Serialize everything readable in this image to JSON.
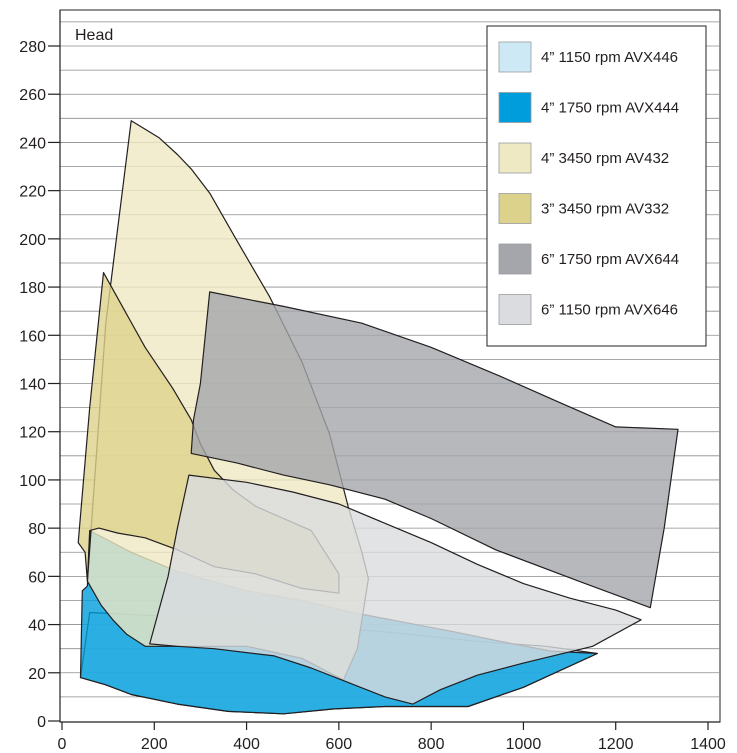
{
  "chart_data": {
    "type": "area",
    "ylabel": "Head",
    "xlabel": "",
    "xlim": [
      0,
      1400
    ],
    "ylim": [
      0,
      290
    ],
    "x_ticks": [
      0,
      200,
      400,
      600,
      800,
      1000,
      1200,
      1400
    ],
    "y_ticks": [
      0,
      20,
      40,
      60,
      80,
      100,
      120,
      140,
      160,
      180,
      200,
      220,
      240,
      260,
      280
    ],
    "grid": "horizontal every 10",
    "legend_position": "top-right",
    "series": [
      {
        "name": "4” 1150 rpm AVX446",
        "color": "#cde9f6",
        "polygon": [
          [
            40,
            18
          ],
          [
            95,
            15
          ],
          [
            150,
            11
          ],
          [
            250,
            7
          ],
          [
            360,
            4
          ],
          [
            480,
            3
          ],
          [
            590,
            5
          ],
          [
            700,
            6
          ],
          [
            880,
            6
          ],
          [
            1000,
            14
          ],
          [
            1160,
            28
          ],
          [
            1050,
            31
          ],
          [
            900,
            33
          ],
          [
            700,
            37
          ],
          [
            400,
            42
          ],
          [
            60,
            45
          ]
        ]
      },
      {
        "name": "4” 1750 rpm AVX444",
        "color": "#009ddc",
        "polygon": [
          [
            40,
            18
          ],
          [
            95,
            15
          ],
          [
            150,
            11
          ],
          [
            250,
            7
          ],
          [
            360,
            4
          ],
          [
            480,
            3
          ],
          [
            590,
            5
          ],
          [
            700,
            6
          ],
          [
            880,
            6
          ],
          [
            1000,
            14
          ],
          [
            1160,
            28
          ],
          [
            1060,
            29
          ],
          [
            950,
            33
          ],
          [
            850,
            37
          ],
          [
            740,
            41
          ],
          [
            630,
            45
          ],
          [
            520,
            50
          ],
          [
            400,
            54
          ],
          [
            250,
            62
          ],
          [
            150,
            70
          ],
          [
            60,
            79
          ],
          [
            55,
            56
          ],
          [
            44,
            54
          ]
        ]
      },
      {
        "name": "4” 3450 rpm AV432",
        "color": "#efe9c3",
        "polygon": [
          [
            150,
            249
          ],
          [
            210,
            242
          ],
          [
            250,
            235
          ],
          [
            280,
            229
          ],
          [
            320,
            219
          ],
          [
            380,
            199
          ],
          [
            450,
            176
          ],
          [
            520,
            149
          ],
          [
            580,
            119
          ],
          [
            620,
            89
          ],
          [
            650,
            70
          ],
          [
            664,
            59
          ],
          [
            640,
            30
          ],
          [
            610,
            17
          ],
          [
            520,
            26
          ],
          [
            400,
            31
          ],
          [
            280,
            31
          ],
          [
            180,
            31
          ],
          [
            140,
            36
          ],
          [
            110,
            42
          ],
          [
            85,
            48
          ],
          [
            55,
            58
          ],
          [
            95,
            165
          ],
          [
            150,
            249
          ]
        ]
      },
      {
        "name": "3” 3450 rpm AV332",
        "color": "#ddd28b",
        "polygon": [
          [
            90,
            186
          ],
          [
            180,
            155
          ],
          [
            240,
            138
          ],
          [
            280,
            125
          ],
          [
            300,
            115
          ],
          [
            330,
            104
          ],
          [
            370,
            96
          ],
          [
            420,
            89
          ],
          [
            480,
            84
          ],
          [
            540,
            79
          ],
          [
            600,
            61
          ],
          [
            600,
            53
          ],
          [
            520,
            55
          ],
          [
            420,
            61
          ],
          [
            330,
            64
          ],
          [
            250,
            71
          ],
          [
            180,
            76
          ],
          [
            120,
            78
          ],
          [
            80,
            80
          ],
          [
            60,
            79
          ],
          [
            55,
            58
          ],
          [
            50,
            70
          ],
          [
            35,
            74
          ],
          [
            60,
            130
          ],
          [
            90,
            186
          ]
        ]
      },
      {
        "name": "6” 1750 rpm AVX644",
        "color": "#a4a6ab",
        "polygon": [
          [
            320,
            178
          ],
          [
            480,
            172
          ],
          [
            650,
            165
          ],
          [
            800,
            155
          ],
          [
            950,
            143
          ],
          [
            1080,
            132
          ],
          [
            1200,
            122
          ],
          [
            1335,
            121
          ],
          [
            1305,
            80
          ],
          [
            1275,
            47
          ],
          [
            1120,
            58
          ],
          [
            940,
            71
          ],
          [
            800,
            84
          ],
          [
            700,
            92
          ],
          [
            580,
            98
          ],
          [
            480,
            102
          ],
          [
            380,
            107
          ],
          [
            280,
            111
          ],
          [
            285,
            125
          ],
          [
            300,
            140
          ],
          [
            320,
            178
          ]
        ]
      },
      {
        "name": "6” 1150 rpm AVX646",
        "color": "#dadcdf",
        "polygon": [
          [
            275,
            102
          ],
          [
            400,
            99
          ],
          [
            500,
            95
          ],
          [
            600,
            90
          ],
          [
            700,
            82
          ],
          [
            800,
            74
          ],
          [
            900,
            65
          ],
          [
            1000,
            57
          ],
          [
            1100,
            51
          ],
          [
            1200,
            46
          ],
          [
            1255,
            42
          ],
          [
            1150,
            31
          ],
          [
            1000,
            24
          ],
          [
            900,
            19
          ],
          [
            820,
            13
          ],
          [
            760,
            7
          ],
          [
            700,
            10
          ],
          [
            620,
            16
          ],
          [
            540,
            22
          ],
          [
            460,
            27
          ],
          [
            330,
            30
          ],
          [
            250,
            31
          ],
          [
            190,
            32
          ],
          [
            230,
            60
          ],
          [
            250,
            80
          ],
          [
            275,
            102
          ]
        ]
      }
    ]
  }
}
